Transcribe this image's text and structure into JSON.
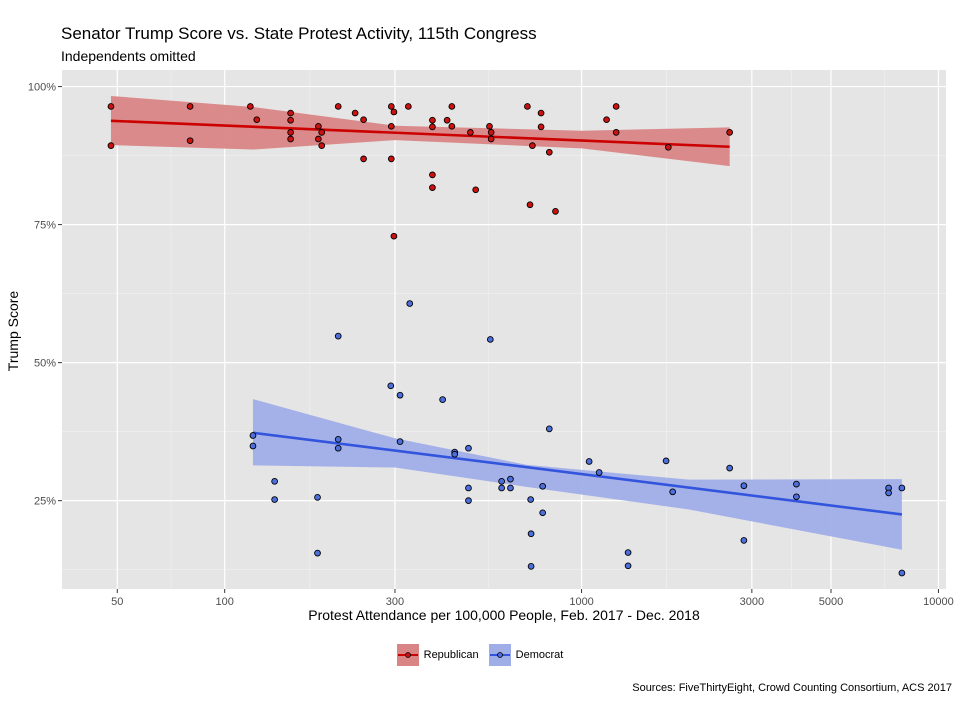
{
  "title": "Senator Trump Score vs. State Protest Activity, 115th Congress",
  "subtitle": "Independents omitted",
  "caption": "Sources: FiveThirtyEight, Crowd Counting Consortium, ACS 2017",
  "colors": {
    "panel_bg": "#e5e5e5",
    "grid_major": "#ffffff",
    "grid_minor": "#f2f2f2",
    "republican": "#cc0000",
    "republican_ribbon": "#d98585",
    "democrat": "#3355dd",
    "democrat_ribbon": "#a0aee8",
    "republican_point": "#cc1111",
    "democrat_point": "#4d6fdd"
  },
  "chart_data": {
    "type": "scatter",
    "title": "Senator Trump Score vs. State Protest Activity, 115th Congress",
    "subtitle": "Independents omitted",
    "xlabel": "Protest Attendance per 100,000 People, Feb. 2017 - Dec. 2018",
    "ylabel": "Trump Score",
    "x_scale": "log10",
    "xlim": [
      35,
      10500
    ],
    "ylim": [
      9,
      103
    ],
    "x_ticks": [
      50,
      100,
      300,
      1000,
      3000,
      5000,
      10000
    ],
    "x_tick_labels": [
      "50",
      "100",
      "300",
      "1000",
      "3000",
      "5000",
      "10000"
    ],
    "y_ticks": [
      25,
      50,
      75,
      100
    ],
    "y_tick_labels": [
      "25%",
      "50%",
      "75%",
      "100%"
    ],
    "legend_position": "bottom",
    "grid": true,
    "series": [
      {
        "name": "Republican",
        "points": [
          [
            48,
            96.4
          ],
          [
            48,
            89.3
          ],
          [
            80,
            96.4
          ],
          [
            80,
            90.2
          ],
          [
            118,
            96.4
          ],
          [
            123,
            94.0
          ],
          [
            153,
            95.2
          ],
          [
            153,
            93.9
          ],
          [
            153,
            91.7
          ],
          [
            153,
            90.5
          ],
          [
            183,
            92.8
          ],
          [
            183,
            90.5
          ],
          [
            187,
            91.7
          ],
          [
            187,
            89.3
          ],
          [
            208,
            96.4
          ],
          [
            232,
            95.2
          ],
          [
            245,
            94.0
          ],
          [
            245,
            86.9
          ],
          [
            293,
            96.4
          ],
          [
            293,
            92.8
          ],
          [
            293,
            86.9
          ],
          [
            298,
            95.4
          ],
          [
            298,
            72.9
          ],
          [
            327,
            96.4
          ],
          [
            382,
            93.9
          ],
          [
            382,
            92.7
          ],
          [
            382,
            84.0
          ],
          [
            382,
            81.7
          ],
          [
            420,
            93.9
          ],
          [
            433,
            96.4
          ],
          [
            433,
            92.8
          ],
          [
            488,
            91.7
          ],
          [
            505,
            81.3
          ],
          [
            552,
            92.8
          ],
          [
            558,
            91.7
          ],
          [
            558,
            90.5
          ],
          [
            705,
            96.4
          ],
          [
            717,
            78.6
          ],
          [
            728,
            89.3
          ],
          [
            770,
            95.2
          ],
          [
            770,
            92.7
          ],
          [
            812,
            88.1
          ],
          [
            845,
            77.4
          ],
          [
            1175,
            94.0
          ],
          [
            1250,
            96.4
          ],
          [
            1250,
            91.7
          ],
          [
            1750,
            89.0
          ],
          [
            2600,
            91.7
          ]
        ],
        "trend": [
          [
            48,
            93.8
          ],
          [
            2600,
            89.1
          ]
        ],
        "ribbon": [
          [
            48,
            98.3,
            89.4
          ],
          [
            120,
            96.3,
            88.6
          ],
          [
            300,
            92.9,
            90.3
          ],
          [
            1000,
            92.0,
            88.8
          ],
          [
            2600,
            92.6,
            85.6
          ]
        ]
      },
      {
        "name": "Democrat",
        "points": [
          [
            120,
            36.8
          ],
          [
            120,
            34.9
          ],
          [
            138,
            28.5
          ],
          [
            138,
            25.2
          ],
          [
            182,
            25.6
          ],
          [
            182,
            15.5
          ],
          [
            208,
            54.8
          ],
          [
            208,
            36.1
          ],
          [
            208,
            34.5
          ],
          [
            292,
            45.8
          ],
          [
            310,
            44.1
          ],
          [
            310,
            35.7
          ],
          [
            330,
            60.7
          ],
          [
            408,
            43.3
          ],
          [
            441,
            33.8
          ],
          [
            441,
            33.4
          ],
          [
            482,
            34.5
          ],
          [
            482,
            27.3
          ],
          [
            482,
            25.0
          ],
          [
            555,
            54.2
          ],
          [
            597,
            28.5
          ],
          [
            597,
            27.3
          ],
          [
            632,
            28.9
          ],
          [
            632,
            27.3
          ],
          [
            720,
            25.2
          ],
          [
            722,
            19.0
          ],
          [
            722,
            13.1
          ],
          [
            778,
            22.8
          ],
          [
            778,
            27.6
          ],
          [
            812,
            38.0
          ],
          [
            1050,
            32.1
          ],
          [
            1120,
            30.1
          ],
          [
            1350,
            15.6
          ],
          [
            1350,
            13.2
          ],
          [
            1725,
            32.2
          ],
          [
            1800,
            26.6
          ],
          [
            2600,
            30.9
          ],
          [
            2850,
            27.7
          ],
          [
            2850,
            17.8
          ],
          [
            4000,
            28.0
          ],
          [
            4000,
            25.7
          ],
          [
            7250,
            27.3
          ],
          [
            7250,
            26.4
          ],
          [
            7900,
            27.3
          ],
          [
            7900,
            11.9
          ]
        ],
        "trend": [
          [
            120,
            37.3
          ],
          [
            7900,
            22.5
          ]
        ],
        "ribbon": [
          [
            120,
            43.4,
            31.4
          ],
          [
            300,
            36.3,
            31.0
          ],
          [
            700,
            31.5,
            27.5
          ],
          [
            2000,
            28.8,
            23.4
          ],
          [
            7900,
            28.9,
            16.1
          ]
        ]
      }
    ]
  }
}
